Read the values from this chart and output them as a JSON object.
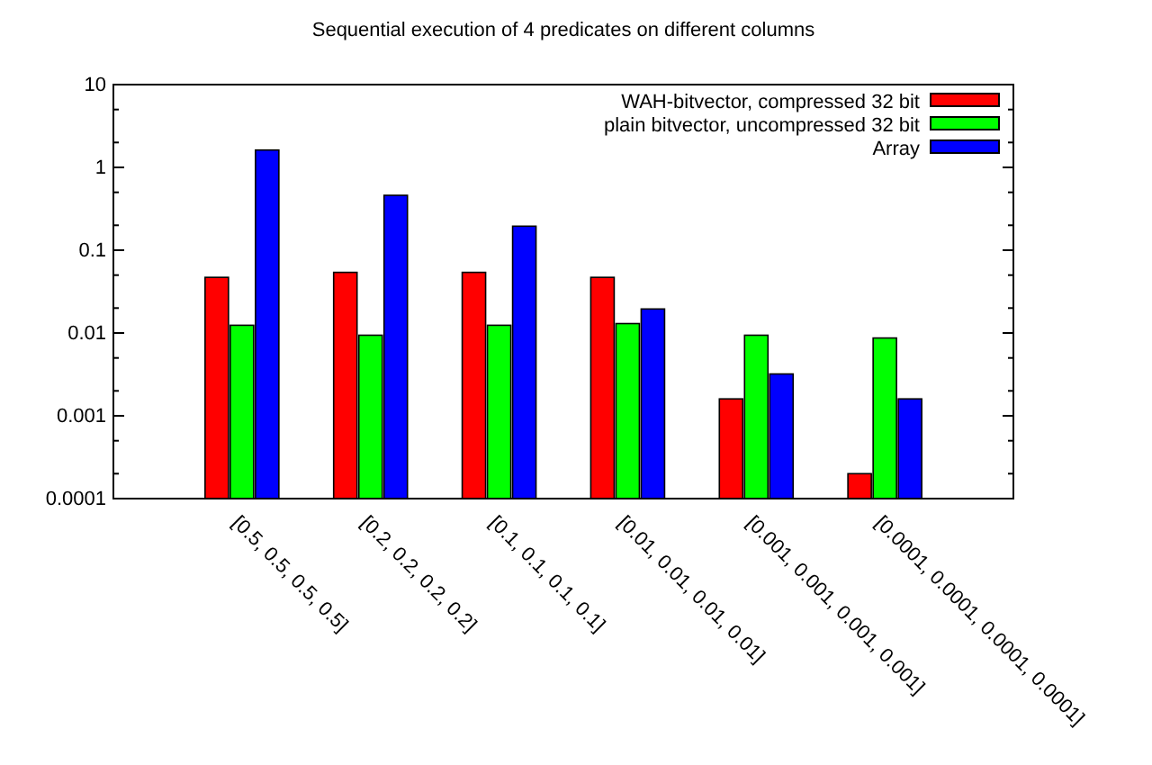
{
  "chart_data": {
    "type": "bar",
    "title": "Sequential execution of 4 predicates on different columns",
    "categories": [
      "[0.5, 0.5, 0.5, 0.5]",
      "[0.2, 0.2, 0.2, 0.2]",
      "[0.1, 0.1, 0.1, 0.1]",
      "[0.01, 0.01, 0.01, 0.01]",
      "[0.001, 0.001, 0.001, 0.001]",
      "[0.0001, 0.0001, 0.0001, 0.0001]"
    ],
    "series": [
      {
        "name": "WAH-bitvector, compressed 32 bit",
        "color": "#ff0000",
        "values": [
          0.047,
          0.054,
          0.054,
          0.047,
          0.0016,
          0.0002
        ]
      },
      {
        "name": "plain bitvector, uncompressed 32 bit",
        "color": "#00ff00",
        "values": [
          0.0124,
          0.0094,
          0.0124,
          0.013,
          0.0094,
          0.0087
        ]
      },
      {
        "name": "Array",
        "color": "#0000ff",
        "values": [
          1.62,
          0.46,
          0.195,
          0.0195,
          0.0032,
          0.0016
        ]
      }
    ],
    "log": true,
    "ylim": [
      0.0001,
      10
    ],
    "yticks": [
      {
        "value": 0.0001,
        "label": "0.0001"
      },
      {
        "value": 0.0002,
        "label": null
      },
      {
        "value": 0.0005,
        "label": null
      },
      {
        "value": 0.001,
        "label": "0.001"
      },
      {
        "value": 0.002,
        "label": null
      },
      {
        "value": 0.005,
        "label": null
      },
      {
        "value": 0.01,
        "label": "0.01"
      },
      {
        "value": 0.02,
        "label": null
      },
      {
        "value": 0.05,
        "label": null
      },
      {
        "value": 0.1,
        "label": "0.1"
      },
      {
        "value": 0.2,
        "label": null
      },
      {
        "value": 0.5,
        "label": null
      },
      {
        "value": 1,
        "label": "1"
      },
      {
        "value": 2,
        "label": null
      },
      {
        "value": 5,
        "label": null
      },
      {
        "value": 10,
        "label": "10"
      }
    ],
    "legend": "top right",
    "grid": false
  }
}
